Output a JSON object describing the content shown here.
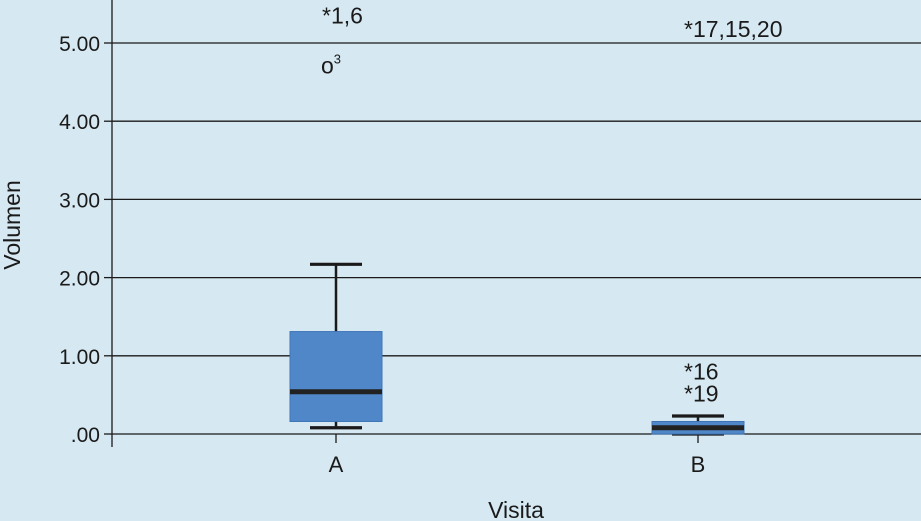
{
  "chart_data": {
    "type": "box",
    "xlabel": "Visita",
    "ylabel": "Volumen",
    "ylim": [
      0,
      5.5
    ],
    "yticks": [
      0,
      1,
      2,
      3,
      4,
      5
    ],
    "ytick_labels": [
      ".00",
      "1.00",
      "2.00",
      "3.00",
      "4.00",
      "5.00"
    ],
    "grid": true,
    "box_color": "#4f87c9",
    "median_color": "#222222",
    "categories": [
      "A",
      "B"
    ],
    "boxes": [
      {
        "category": "A",
        "whisker_low": 0.08,
        "q1": 0.16,
        "median": 0.54,
        "q3": 1.31,
        "whisker_high": 2.17,
        "outliers": [
          {
            "marker": "o",
            "value": 4.7,
            "label": "3"
          }
        ],
        "extremes": [
          {
            "marker": "*",
            "value": 5.35,
            "label": "1,6"
          }
        ]
      },
      {
        "category": "B",
        "whisker_low": 0.0,
        "q1": 0.0,
        "median": 0.08,
        "q3": 0.16,
        "whisker_high": 0.23,
        "outliers": [],
        "extremes": [
          {
            "marker": "*",
            "value": 5.18,
            "label": "17,15,20"
          },
          {
            "marker": "*",
            "value": 0.8,
            "label": "16"
          },
          {
            "marker": "*",
            "value": 0.52,
            "label": "19"
          }
        ]
      }
    ]
  }
}
